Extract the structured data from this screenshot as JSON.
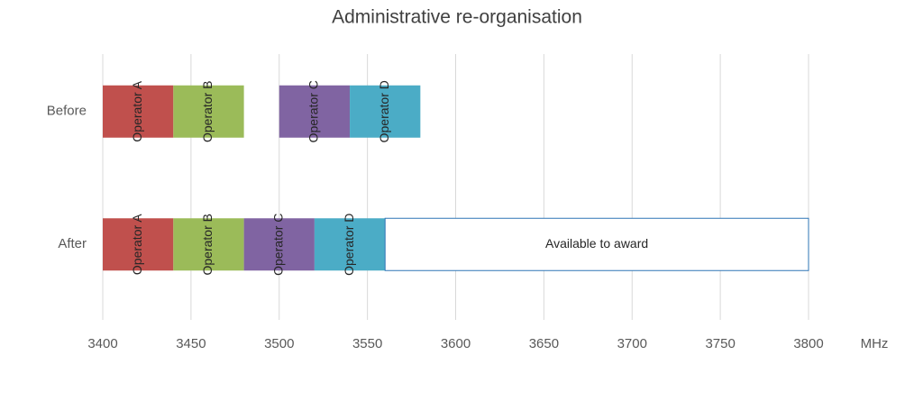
{
  "chart_data": {
    "type": "range_bar",
    "title": "Administrative re-organisation",
    "x_label": "MHz",
    "series": [
      {
        "name": "Before",
        "segments": [
          {
            "label": "Operator A",
            "from": 3400,
            "to": 3440,
            "color": "#c0504d"
          },
          {
            "label": "Operator B",
            "from": 3440,
            "to": 3480,
            "color": "#9bbb59"
          },
          {
            "label": "Operator C",
            "from": 3500,
            "to": 3540,
            "color": "#8064a2"
          },
          {
            "label": "Operator D",
            "from": 3540,
            "to": 3580,
            "color": "#4bacc6"
          }
        ]
      },
      {
        "name": "After",
        "segments": [
          {
            "label": "Operator A",
            "from": 3400,
            "to": 3440,
            "color": "#c0504d"
          },
          {
            "label": "Operator B",
            "from": 3440,
            "to": 3480,
            "color": "#9bbb59"
          },
          {
            "label": "Operator C",
            "from": 3480,
            "to": 3520,
            "color": "#8064a2"
          },
          {
            "label": "Operator D",
            "from": 3520,
            "to": 3560,
            "color": "#4bacc6"
          },
          {
            "label": "Available to award",
            "from": 3560,
            "to": 3800,
            "color": "#ffffff",
            "border": "#2e75b6"
          }
        ]
      }
    ],
    "xlim": [
      3400,
      3800
    ],
    "xticks": [
      3400,
      3450,
      3500,
      3550,
      3600,
      3650,
      3700,
      3750,
      3800
    ],
    "grid": true
  }
}
